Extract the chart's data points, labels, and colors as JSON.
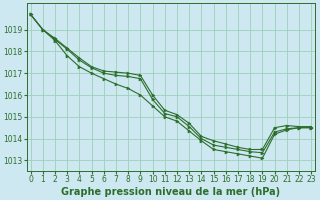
{
  "title": "Graphe pression niveau de la mer (hPa)",
  "bg_color": "#cde8f0",
  "grid_color": "#9ecfb8",
  "line_color": "#2d6e2d",
  "marker_color": "#2d6e2d",
  "series": [
    {
      "x": [
        0,
        1,
        2,
        3,
        4,
        5,
        6,
        7,
        8,
        9,
        10,
        11,
        12,
        13,
        14,
        15,
        16,
        17,
        18,
        19,
        20,
        21,
        22,
        23
      ],
      "y": [
        1019.7,
        1019.0,
        1018.6,
        1018.15,
        1017.7,
        1017.3,
        1017.1,
        1017.05,
        1017.0,
        1016.9,
        1016.0,
        1015.3,
        1015.1,
        1014.7,
        1014.1,
        1013.9,
        1013.75,
        1013.6,
        1013.5,
        1013.5,
        1014.5,
        1014.6,
        1014.55,
        1014.55
      ]
    },
    {
      "x": [
        0,
        1,
        2,
        3,
        4,
        5,
        6,
        7,
        8,
        9,
        10,
        11,
        12,
        13,
        14,
        15,
        16,
        17,
        18,
        19,
        20,
        21,
        22,
        23
      ],
      "y": [
        1019.7,
        1019.0,
        1018.55,
        1018.1,
        1017.6,
        1017.25,
        1017.0,
        1016.9,
        1016.85,
        1016.75,
        1015.8,
        1015.15,
        1015.0,
        1014.55,
        1014.0,
        1013.7,
        1013.6,
        1013.5,
        1013.4,
        1013.35,
        1014.3,
        1014.45,
        1014.5,
        1014.5
      ]
    },
    {
      "x": [
        0,
        1,
        2,
        3,
        4,
        5,
        6,
        7,
        8,
        9,
        10,
        11,
        12,
        13,
        14,
        15,
        16,
        17,
        18,
        19,
        20,
        21,
        22,
        23
      ],
      "y": [
        1019.7,
        1019.0,
        1018.5,
        1017.8,
        1017.3,
        1017.0,
        1016.75,
        1016.5,
        1016.3,
        1016.0,
        1015.5,
        1015.0,
        1014.8,
        1014.35,
        1013.9,
        1013.5,
        1013.4,
        1013.3,
        1013.2,
        1013.1,
        1014.2,
        1014.4,
        1014.5,
        1014.5
      ]
    }
  ],
  "xlim": [
    -0.3,
    23.3
  ],
  "ylim": [
    1012.5,
    1020.2
  ],
  "yticks": [
    1013,
    1014,
    1015,
    1016,
    1017,
    1018,
    1019
  ],
  "xticks": [
    0,
    1,
    2,
    3,
    4,
    5,
    6,
    7,
    8,
    9,
    10,
    11,
    12,
    13,
    14,
    15,
    16,
    17,
    18,
    19,
    20,
    21,
    22,
    23
  ],
  "title_fontsize": 7.0,
  "tick_fontsize": 5.5
}
